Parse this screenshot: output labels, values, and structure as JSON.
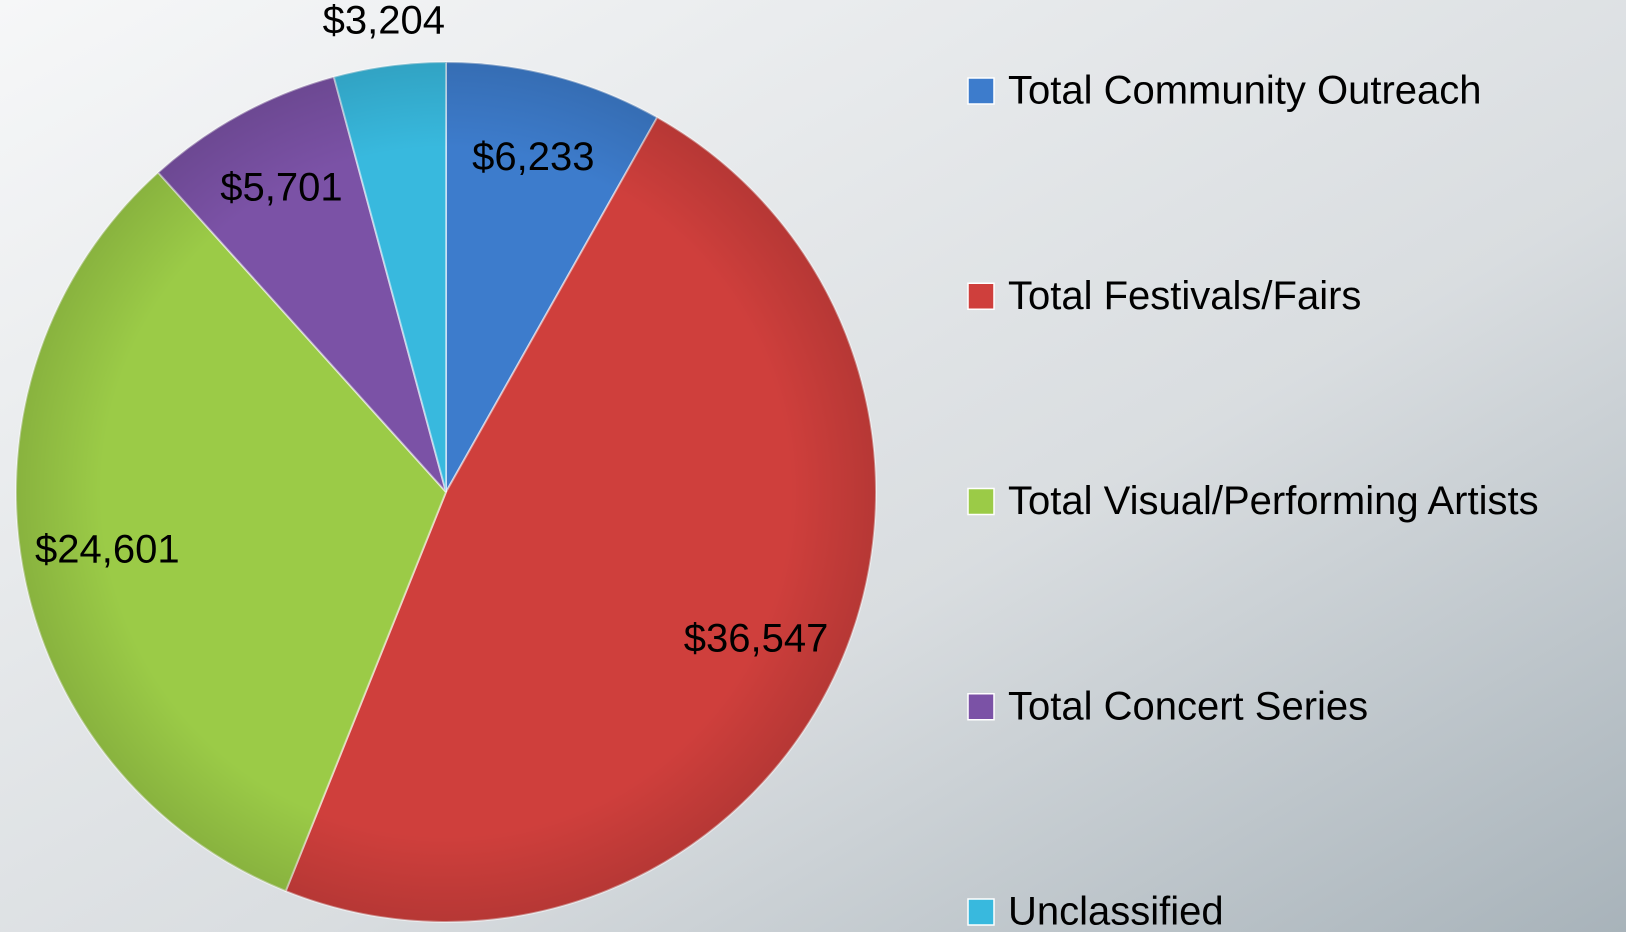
{
  "chart_data": {
    "type": "pie",
    "categories": [
      "Total Community Outreach",
      "Total Festivals/Fairs",
      "Total Visual/Performing Artists",
      "Total Concert Series",
      "Unclassified"
    ],
    "values": [
      6233,
      36547,
      24601,
      5701,
      3204
    ],
    "value_labels": [
      "$6,233",
      "$36,547",
      "$24,601",
      "$5,701",
      "$3,204"
    ],
    "colors": [
      "#3d7ccc",
      "#cf3f3c",
      "#9bcb47",
      "#7b52a6",
      "#38b9de"
    ],
    "legend": "right"
  }
}
